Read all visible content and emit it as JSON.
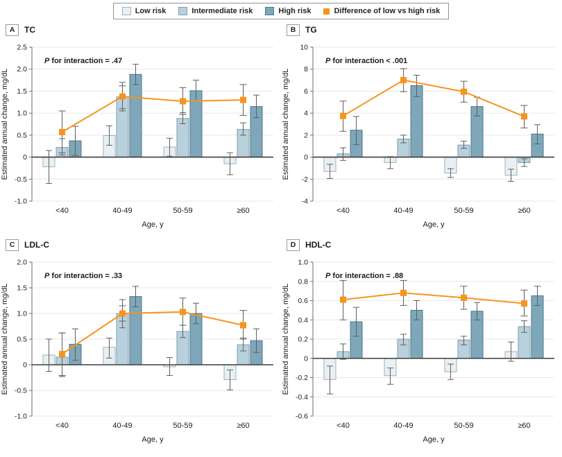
{
  "axis": {
    "y_label": "Estimated annual change, mg/dL",
    "x_label": "Age, y"
  },
  "legend": {
    "items": [
      {
        "label": "Low risk"
      },
      {
        "label": "Intermediate risk"
      },
      {
        "label": "High risk"
      },
      {
        "label": "Difference of low vs high risk"
      }
    ]
  },
  "colors": {
    "grid": "#e7e7e7",
    "axis": "#6b6b6b",
    "zero": "#3d3d3d",
    "text": "#1c1c1c",
    "error": "#5e5e5e",
    "diff": "#f7941e",
    "series": [
      {
        "fill": "#e9f0f4",
        "stroke": "#9db0ba"
      },
      {
        "fill": "#b9d1dd",
        "stroke": "#7e9dab"
      },
      {
        "fill": "#7ea7ba",
        "stroke": "#4e7488"
      }
    ]
  },
  "chart_data": [
    {
      "id": "A",
      "title": "TC",
      "p_italic": "P",
      "p_rest": " for interaction = .47",
      "type": "bar",
      "ylim": [
        -1.0,
        2.5
      ],
      "ytick_step": 0.5,
      "ytick_decimals": 1,
      "categories": [
        "<40",
        "40-49",
        "50-59",
        "≥60"
      ],
      "series": [
        {
          "name": "Low risk",
          "key": "low-risk",
          "type": "bar",
          "values": [
            -0.22,
            0.49,
            0.23,
            -0.15
          ],
          "ci_low": [
            -0.6,
            0.27,
            0.02,
            -0.4
          ],
          "ci_high": [
            0.15,
            0.71,
            0.43,
            0.1
          ]
        },
        {
          "name": "Intermediate risk",
          "key": "intermediate-risk",
          "type": "bar",
          "values": [
            0.22,
            1.37,
            0.88,
            0.63
          ],
          "ci_low": [
            0.05,
            1.05,
            0.76,
            0.5
          ],
          "ci_high": [
            0.42,
            1.7,
            1.01,
            0.78
          ]
        },
        {
          "name": "High risk",
          "key": "high-risk",
          "type": "bar",
          "values": [
            0.37,
            1.88,
            1.51,
            1.15
          ],
          "ci_low": [
            0.04,
            1.65,
            1.28,
            0.9
          ],
          "ci_high": [
            0.7,
            2.11,
            1.75,
            1.41
          ]
        },
        {
          "name": "Difference of low vs high risk",
          "key": "difference",
          "type": "line",
          "values": [
            0.57,
            1.38,
            1.27,
            1.3
          ],
          "ci_low": [
            0.1,
            1.1,
            0.97,
            0.95
          ],
          "ci_high": [
            1.05,
            1.62,
            1.58,
            1.65
          ]
        }
      ]
    },
    {
      "id": "B",
      "title": "TG",
      "p_italic": "P",
      "p_rest": " for interaction < .001",
      "type": "bar",
      "ylim": [
        -4,
        10
      ],
      "ytick_step": 2,
      "ytick_decimals": 0,
      "categories": [
        "<40",
        "40-49",
        "50-59",
        "≥60"
      ],
      "series": [
        {
          "name": "Low risk",
          "key": "low-risk",
          "type": "bar",
          "values": [
            -1.3,
            -0.5,
            -1.45,
            -1.65
          ],
          "ci_low": [
            -1.95,
            -1.05,
            -1.85,
            -2.2
          ],
          "ci_high": [
            -0.65,
            0.05,
            -1.05,
            -1.1
          ]
        },
        {
          "name": "Intermediate risk",
          "key": "intermediate-risk",
          "type": "bar",
          "values": [
            0.3,
            1.65,
            1.1,
            -0.5
          ],
          "ci_low": [
            -0.3,
            1.3,
            0.8,
            -0.85
          ],
          "ci_high": [
            0.85,
            2.0,
            1.45,
            -0.15
          ]
        },
        {
          "name": "High risk",
          "key": "high-risk",
          "type": "bar",
          "values": [
            2.45,
            6.5,
            4.6,
            2.1
          ],
          "ci_low": [
            1.15,
            5.5,
            3.75,
            1.2
          ],
          "ci_high": [
            3.7,
            7.45,
            5.45,
            2.95
          ]
        },
        {
          "name": "Difference of low vs high risk",
          "key": "difference",
          "type": "line",
          "values": [
            3.75,
            7.0,
            5.95,
            3.7
          ],
          "ci_low": [
            2.35,
            5.95,
            5.0,
            2.65
          ],
          "ci_high": [
            5.1,
            8.05,
            6.9,
            4.7
          ]
        }
      ]
    },
    {
      "id": "C",
      "title": "LDL-C",
      "p_italic": "P",
      "p_rest": " for interaction = .33",
      "type": "bar",
      "ylim": [
        -1.0,
        2.0
      ],
      "ytick_step": 0.5,
      "ytick_decimals": 1,
      "categories": [
        "<40",
        "40-49",
        "50-59",
        "≥60"
      ],
      "series": [
        {
          "name": "Low risk",
          "key": "low-risk",
          "type": "bar",
          "values": [
            0.19,
            0.34,
            -0.04,
            -0.29
          ],
          "ci_low": [
            -0.13,
            0.13,
            -0.21,
            -0.49
          ],
          "ci_high": [
            0.5,
            0.52,
            0.14,
            -0.1
          ]
        },
        {
          "name": "Intermediate risk",
          "key": "intermediate-risk",
          "type": "bar",
          "values": [
            0.15,
            1.0,
            0.65,
            0.39
          ],
          "ci_low": [
            -0.23,
            0.72,
            0.53,
            0.27
          ],
          "ci_high": [
            0.62,
            1.27,
            0.77,
            0.52
          ]
        },
        {
          "name": "High risk",
          "key": "high-risk",
          "type": "bar",
          "values": [
            0.4,
            1.33,
            1.0,
            0.47
          ],
          "ci_low": [
            0.09,
            1.13,
            0.8,
            0.24
          ],
          "ci_high": [
            0.7,
            1.53,
            1.2,
            0.7
          ]
        },
        {
          "name": "Difference of low vs high risk",
          "key": "difference",
          "type": "line",
          "values": [
            0.21,
            1.0,
            1.03,
            0.77
          ],
          "ci_low": [
            -0.21,
            0.85,
            0.77,
            0.5
          ],
          "ci_high": [
            0.62,
            1.15,
            1.3,
            1.06
          ]
        }
      ]
    },
    {
      "id": "D",
      "title": "HDL-C",
      "p_italic": "P",
      "p_rest": " for interaction = .88",
      "type": "bar",
      "ylim": [
        -0.6,
        1.0
      ],
      "ytick_step": 0.2,
      "ytick_decimals": 1,
      "categories": [
        "<40",
        "40-49",
        "50-59",
        "≥60"
      ],
      "series": [
        {
          "name": "Low risk",
          "key": "low-risk",
          "type": "bar",
          "values": [
            -0.22,
            -0.18,
            -0.14,
            0.07
          ],
          "ci_low": [
            -0.37,
            -0.27,
            -0.22,
            -0.03
          ],
          "ci_high": [
            -0.08,
            -0.1,
            -0.06,
            0.17
          ]
        },
        {
          "name": "Intermediate risk",
          "key": "intermediate-risk",
          "type": "bar",
          "values": [
            0.07,
            0.2,
            0.19,
            0.33
          ],
          "ci_low": [
            -0.01,
            0.14,
            0.14,
            0.27
          ],
          "ci_high": [
            0.15,
            0.25,
            0.23,
            0.39
          ]
        },
        {
          "name": "High risk",
          "key": "high-risk",
          "type": "bar",
          "values": [
            0.38,
            0.5,
            0.49,
            0.65
          ],
          "ci_low": [
            0.23,
            0.4,
            0.4,
            0.55
          ],
          "ci_high": [
            0.53,
            0.6,
            0.58,
            0.75
          ]
        },
        {
          "name": "Difference of low vs high risk",
          "key": "difference",
          "type": "line",
          "values": [
            0.61,
            0.68,
            0.63,
            0.57
          ],
          "ci_low": [
            0.4,
            0.55,
            0.51,
            0.44
          ],
          "ci_high": [
            0.81,
            0.81,
            0.75,
            0.71
          ]
        }
      ]
    }
  ]
}
